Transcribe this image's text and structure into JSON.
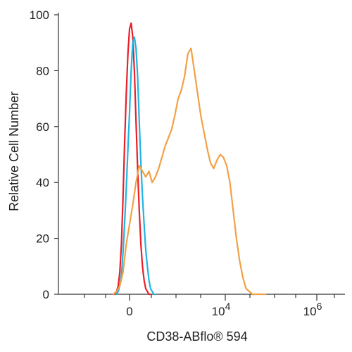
{
  "chart_data": {
    "type": "line",
    "title": "",
    "xlabel": "CD38-ABflo® 594",
    "ylabel": "Relative Cell Number",
    "ylim": [
      0,
      100
    ],
    "yticks": [
      "0",
      "20",
      "40",
      "60",
      "80",
      "100"
    ],
    "xticks": [
      {
        "base": "0",
        "exp": ""
      },
      {
        "base": "10",
        "exp": "4"
      },
      {
        "base": "10",
        "exp": "6"
      }
    ],
    "grid": false,
    "series": [
      {
        "color": "#e8202a",
        "x": [
          -10,
          -9,
          -8,
          -7,
          -6,
          -5,
          -4,
          -3,
          -2,
          -1,
          0,
          1,
          2,
          3,
          4,
          5,
          6,
          7,
          8,
          9,
          10,
          11,
          12,
          13
        ],
        "values": [
          0,
          0,
          1,
          3,
          8,
          18,
          35,
          55,
          72,
          86,
          95,
          97,
          92,
          80,
          62,
          45,
          30,
          18,
          10,
          5,
          2,
          1,
          0,
          0
        ]
      },
      {
        "color": "#20b4e0",
        "x": [
          -8,
          -7,
          -6,
          -5,
          -4,
          -3,
          -2,
          -1,
          0,
          1,
          2,
          3,
          4,
          5,
          6,
          7,
          8,
          9,
          10,
          11,
          12,
          13,
          14,
          15,
          16
        ],
        "values": [
          0,
          1,
          3,
          7,
          15,
          26,
          38,
          52,
          65,
          80,
          90,
          92,
          88,
          78,
          62,
          47,
          35,
          25,
          16,
          10,
          5,
          2,
          1,
          0,
          0
        ]
      },
      {
        "color": "#f3a045",
        "x": [
          -10,
          -8,
          -6,
          -4,
          -2,
          0,
          2,
          4,
          6,
          8,
          10,
          12,
          14,
          16,
          18,
          20,
          22,
          24,
          26,
          28,
          30,
          32,
          34,
          36,
          38,
          40,
          42,
          44,
          46,
          48,
          50,
          52,
          54,
          56,
          58,
          60,
          62,
          64,
          66,
          68,
          70,
          72,
          74,
          76,
          78,
          80,
          82,
          84
        ],
        "values": [
          0,
          1,
          3,
          8,
          18,
          25,
          32,
          40,
          46,
          44,
          42,
          44,
          40,
          42,
          45,
          49,
          53,
          56,
          59,
          64,
          70,
          73,
          78,
          86,
          88,
          80,
          72,
          64,
          58,
          52,
          47,
          45,
          48,
          50,
          49,
          46,
          40,
          30,
          20,
          12,
          6,
          2,
          1,
          0,
          0,
          0,
          0,
          0
        ]
      }
    ]
  }
}
